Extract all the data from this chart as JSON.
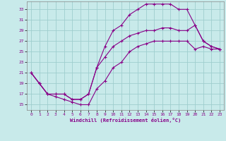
{
  "xlabel": "Windchill (Refroidissement éolien,°C)",
  "xlim": [
    -0.5,
    23.5
  ],
  "ylim": [
    14.0,
    34.5
  ],
  "xticks": [
    0,
    1,
    2,
    3,
    4,
    5,
    6,
    7,
    8,
    9,
    10,
    11,
    12,
    13,
    14,
    15,
    16,
    17,
    18,
    19,
    20,
    21,
    22,
    23
  ],
  "yticks": [
    15,
    17,
    19,
    21,
    23,
    25,
    27,
    29,
    31,
    33
  ],
  "bg_color": "#c8eaea",
  "line_color": "#880088",
  "grid_color": "#9fcece",
  "line1_x": [
    0,
    1,
    2,
    3,
    4,
    5,
    6,
    7,
    8,
    9,
    10,
    11,
    12,
    13,
    14,
    15,
    16,
    17,
    18,
    19,
    20,
    21,
    22,
    23
  ],
  "line1_y": [
    21,
    19,
    17,
    16.5,
    16,
    15.5,
    15,
    15,
    18,
    19.5,
    22,
    23,
    25,
    26,
    26.5,
    27,
    27,
    27,
    27,
    27,
    25.5,
    26,
    25.5,
    25.5
  ],
  "line2_x": [
    0,
    1,
    2,
    3,
    4,
    5,
    6,
    7,
    8,
    9,
    10,
    11,
    12,
    13,
    14,
    15,
    16,
    17,
    18,
    19,
    20,
    21,
    22,
    23
  ],
  "line2_y": [
    21,
    19,
    17,
    17,
    17,
    16,
    16,
    17,
    22,
    26,
    29,
    30,
    32,
    33,
    34,
    34,
    34,
    34,
    33,
    33,
    30,
    27,
    26,
    25.5
  ],
  "line3_x": [
    0,
    1,
    2,
    3,
    4,
    5,
    6,
    7,
    8,
    9,
    10,
    11,
    12,
    13,
    14,
    15,
    16,
    17,
    18,
    19,
    20,
    21,
    22,
    23
  ],
  "line3_y": [
    21,
    19,
    17,
    17,
    17,
    16,
    16,
    17,
    22,
    24,
    26,
    27,
    28,
    28.5,
    29,
    29,
    29.5,
    29.5,
    29,
    29,
    30,
    27,
    26,
    25.5
  ]
}
